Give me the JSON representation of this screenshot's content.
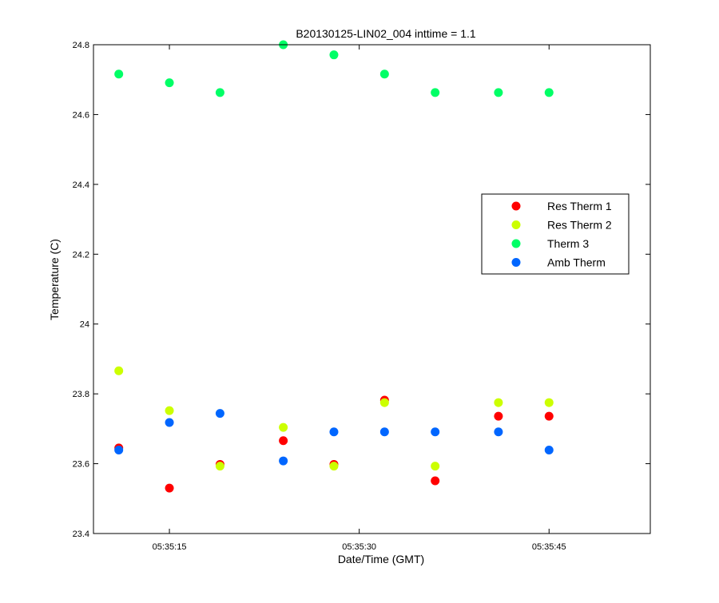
{
  "chart_data": {
    "type": "scatter",
    "title": "B20130125-LIN02_004 inttime = 1.1",
    "xlabel": "Date/Time (GMT)",
    "ylabel": "Temperature (C)",
    "x_unit": "time (GMT, hh:mm:ss)",
    "xlim": [
      "05:35:09",
      "05:35:53"
    ],
    "ylim": [
      23.4,
      24.8
    ],
    "xticks": [
      "05:35:15",
      "05:35:30",
      "05:35:45"
    ],
    "yticks": [
      "23.4",
      "23.6",
      "23.8",
      "24",
      "24.2",
      "24.4",
      "24.6",
      "24.8"
    ],
    "grid": false,
    "legend_position": "right",
    "x": [
      "05:35:11",
      "05:35:15",
      "05:35:19",
      "05:35:24",
      "05:35:28",
      "05:35:32",
      "05:35:36",
      "05:35:41",
      "05:35:45"
    ],
    "series": [
      {
        "name": "Res Therm 1",
        "color": "#ff0000",
        "values": [
          23.645,
          23.53,
          23.598,
          23.666,
          23.598,
          23.782,
          null,
          23.736,
          23.736
        ],
        "extra_points": [
          {
            "x": "05:35:36",
            "y": 23.551
          }
        ]
      },
      {
        "name": "Res Therm 2",
        "color": "#ccff00",
        "values": [
          23.866,
          23.752,
          23.593,
          23.704,
          23.593,
          23.775,
          23.593,
          23.775,
          23.775
        ]
      },
      {
        "name": "Therm 3",
        "color": "#00ff66",
        "values": [
          24.716,
          24.691,
          24.663,
          24.8,
          24.771,
          24.716,
          24.663,
          24.663,
          24.663
        ]
      },
      {
        "name": "Amb Therm",
        "color": "#0066ff",
        "values": [
          23.639,
          23.718,
          23.744,
          23.608,
          23.691,
          23.691,
          23.691,
          23.691,
          23.639
        ]
      }
    ]
  }
}
